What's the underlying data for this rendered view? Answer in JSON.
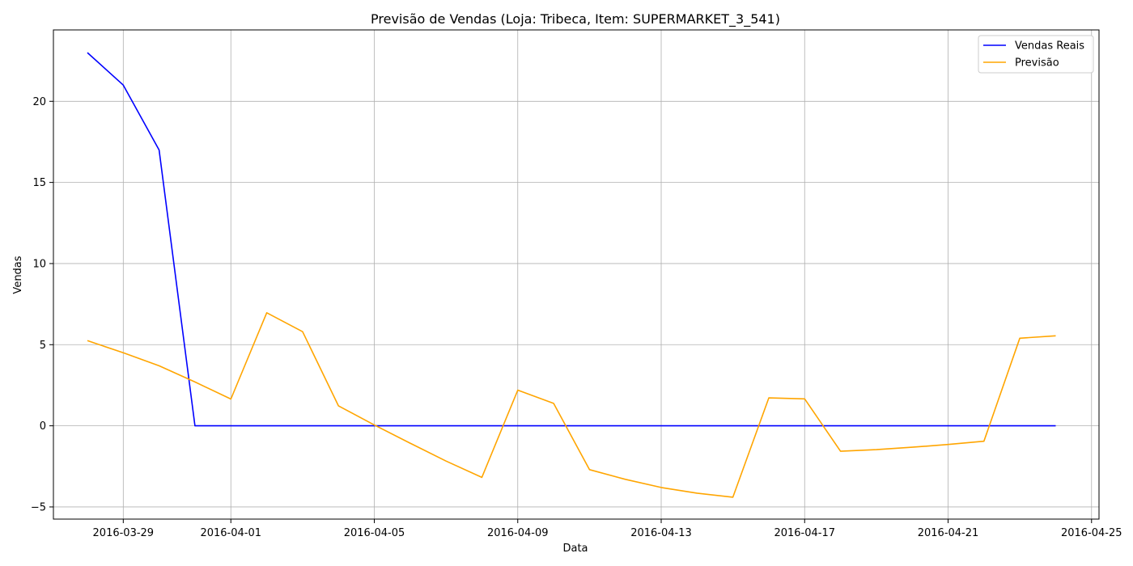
{
  "chart_data": {
    "type": "line",
    "title": "Previsão de Vendas (Loja: Tribeca, Item: SUPERMARKET_3_541)",
    "xlabel": "Data",
    "ylabel": "Vendas",
    "grid": true,
    "legend_position": "top-right",
    "xlim": [
      "2016-03-27T01:15",
      "2016-04-25T05:00"
    ],
    "ylim": [
      -5.75,
      24.4
    ],
    "x_ticks": [
      "2016-03-29",
      "2016-04-01",
      "2016-04-05",
      "2016-04-09",
      "2016-04-13",
      "2016-04-17",
      "2016-04-21",
      "2016-04-25"
    ],
    "y_ticks": [
      -5,
      0,
      5,
      10,
      15,
      20
    ],
    "x": [
      "2016-03-28",
      "2016-03-29",
      "2016-03-30",
      "2016-03-31",
      "2016-04-01",
      "2016-04-02",
      "2016-04-03",
      "2016-04-04",
      "2016-04-05",
      "2016-04-06",
      "2016-04-07",
      "2016-04-08",
      "2016-04-09",
      "2016-04-10",
      "2016-04-11",
      "2016-04-12",
      "2016-04-13",
      "2016-04-14",
      "2016-04-15",
      "2016-04-16",
      "2016-04-17",
      "2016-04-18",
      "2016-04-19",
      "2016-04-20",
      "2016-04-21",
      "2016-04-22",
      "2016-04-23",
      "2016-04-24"
    ],
    "series": [
      {
        "name": "Vendas Reais",
        "color": "#0000ff",
        "values": [
          23,
          21,
          17,
          0,
          0,
          0,
          0,
          0,
          0,
          0,
          0,
          0,
          0,
          0,
          0,
          0,
          0,
          0,
          0,
          0,
          0,
          0,
          0,
          0,
          0,
          0,
          0,
          0
        ]
      },
      {
        "name": "Previsão",
        "color": "#ffa500",
        "values": [
          5.25,
          4.5,
          3.7,
          2.7,
          1.65,
          6.97,
          5.8,
          1.23,
          0.05,
          -1.07,
          -2.17,
          -3.18,
          2.2,
          1.38,
          -2.7,
          -3.3,
          -3.8,
          -4.15,
          -4.4,
          1.72,
          1.66,
          -1.57,
          -1.47,
          -1.32,
          -1.15,
          -0.95,
          5.4,
          5.55
        ]
      }
    ]
  }
}
